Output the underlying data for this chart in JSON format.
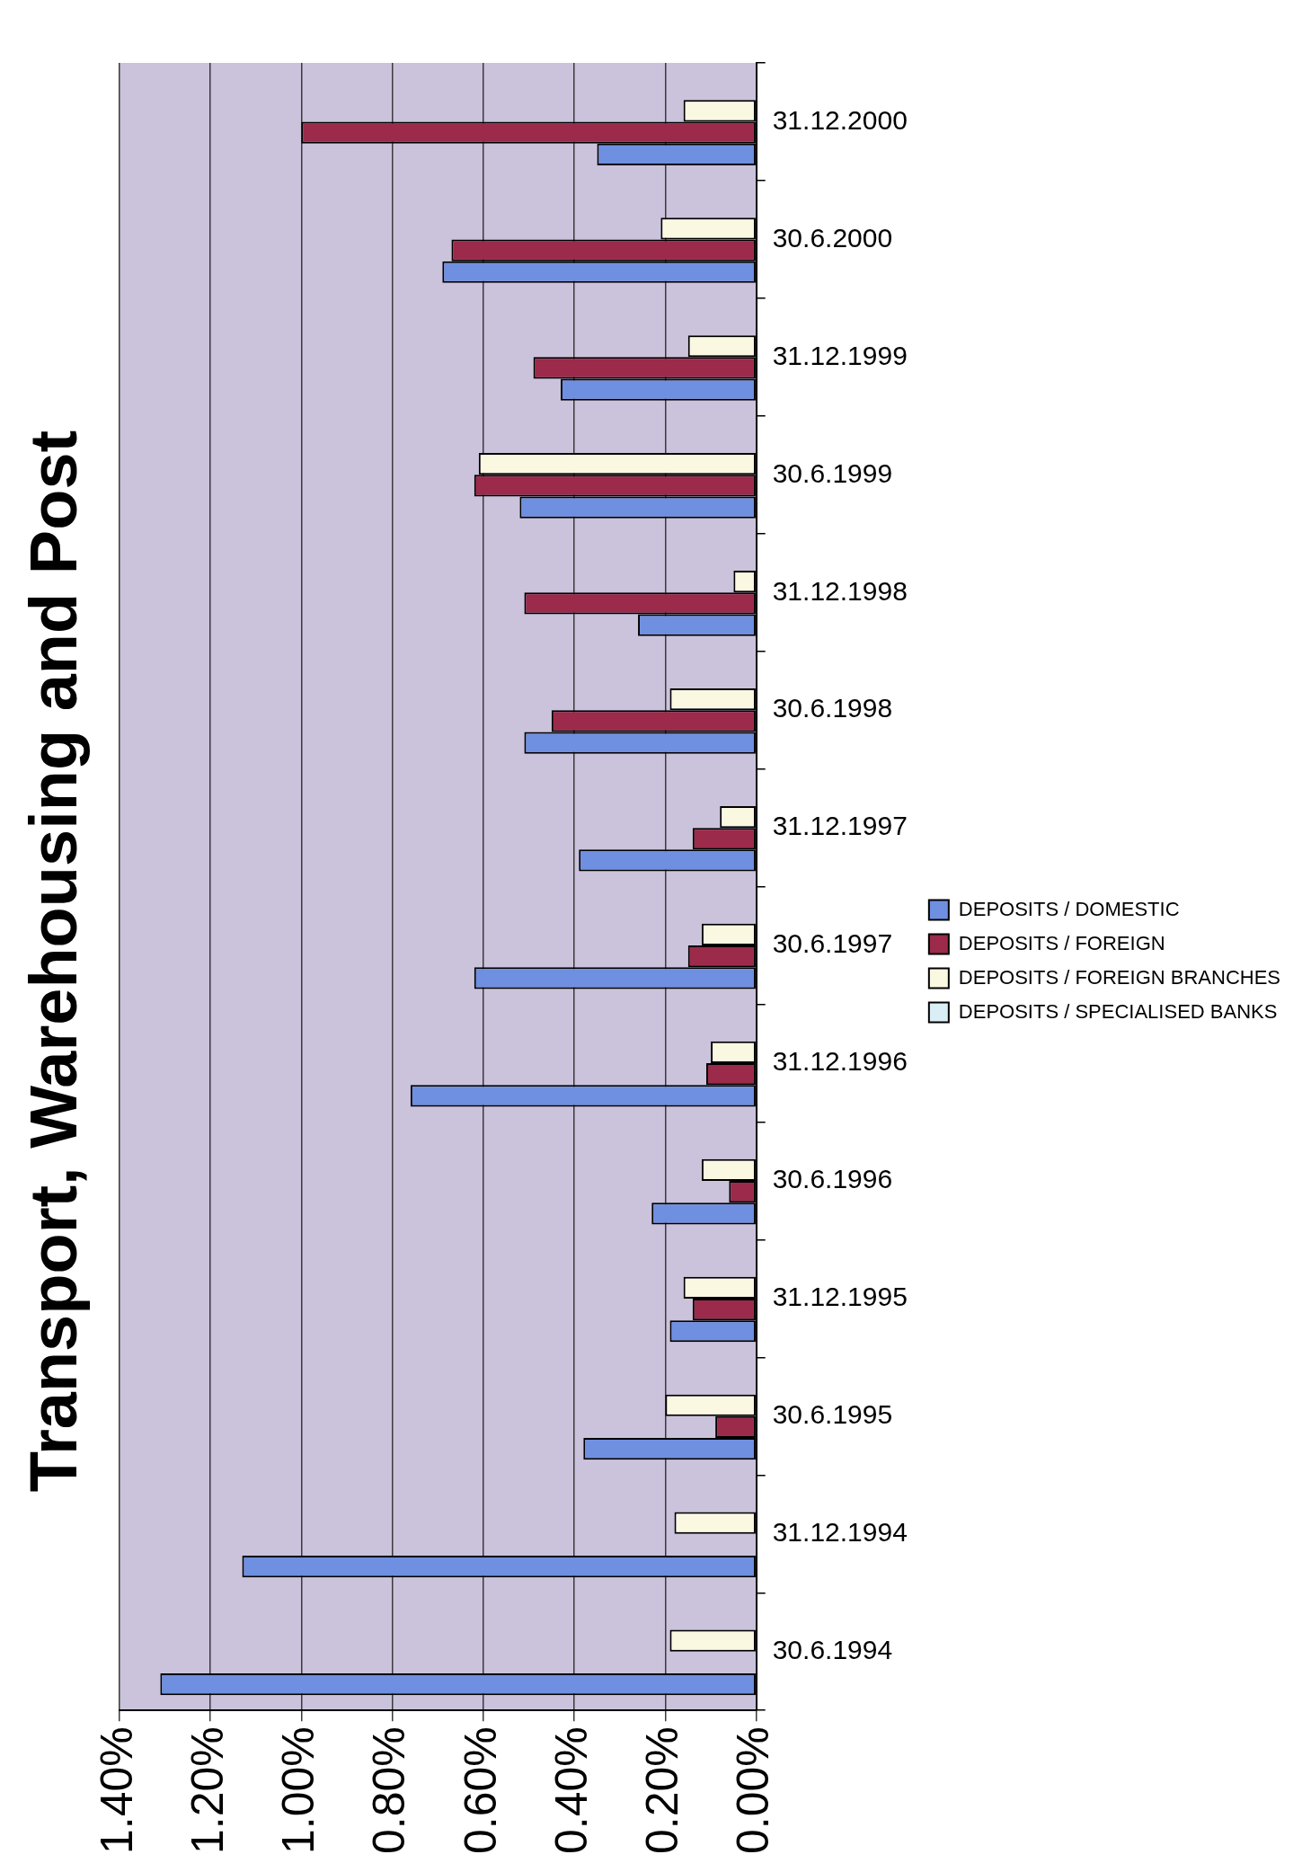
{
  "chart_data": {
    "type": "bar",
    "orientation": "horizontal",
    "title": "Transport, Warehousing and Post",
    "categories": [
      "31.12.2000",
      "30.6.2000",
      "31.12.1999",
      "30.6.1999",
      "31.12.1998",
      "30.6.1998",
      "31.12.1997",
      "30.6.1997",
      "31.12.1996",
      "30.6.1996",
      "31.12.1995",
      "30.6.1995",
      "31.12.1994",
      "30.6.1994"
    ],
    "series": [
      {
        "name": "DEPOSITS / DOMESTIC",
        "color": "#6f8fe0",
        "values": [
          0.35,
          0.69,
          0.43,
          0.52,
          0.26,
          0.51,
          0.39,
          0.62,
          0.76,
          0.23,
          0.19,
          0.38,
          1.13,
          1.31
        ]
      },
      {
        "name": "DEPOSITS / FOREIGN",
        "color": "#9c2a4a",
        "values": [
          1.0,
          0.67,
          0.49,
          0.62,
          0.51,
          0.45,
          0.14,
          0.15,
          0.11,
          0.06,
          0.14,
          0.09,
          null,
          null
        ]
      },
      {
        "name": "DEPOSITS / FOREIGN BRANCHES",
        "color": "#fbf8e2",
        "values": [
          0.16,
          0.21,
          0.15,
          0.61,
          0.05,
          0.19,
          0.08,
          0.12,
          0.1,
          0.12,
          0.16,
          0.2,
          0.18,
          0.19
        ]
      },
      {
        "name": "DEPOSITS / SPECIALISED BANKS",
        "color": "#d9eef5",
        "values": [
          null,
          null,
          null,
          null,
          null,
          null,
          null,
          null,
          null,
          null,
          null,
          null,
          null,
          null
        ]
      }
    ],
    "xlim": [
      1.4,
      0
    ],
    "xticks": [
      {
        "value": 1.4,
        "label": "1.40%"
      },
      {
        "value": 1.2,
        "label": "1.20%"
      },
      {
        "value": 1.0,
        "label": "1.00%"
      },
      {
        "value": 0.8,
        "label": "0.80%"
      },
      {
        "value": 0.6,
        "label": "0.60%"
      },
      {
        "value": 0.4,
        "label": "0.40%"
      },
      {
        "value": 0.2,
        "label": "0.20%"
      },
      {
        "value": 0,
        "label": "0.00%"
      }
    ],
    "grid": "x",
    "legend": "right"
  }
}
